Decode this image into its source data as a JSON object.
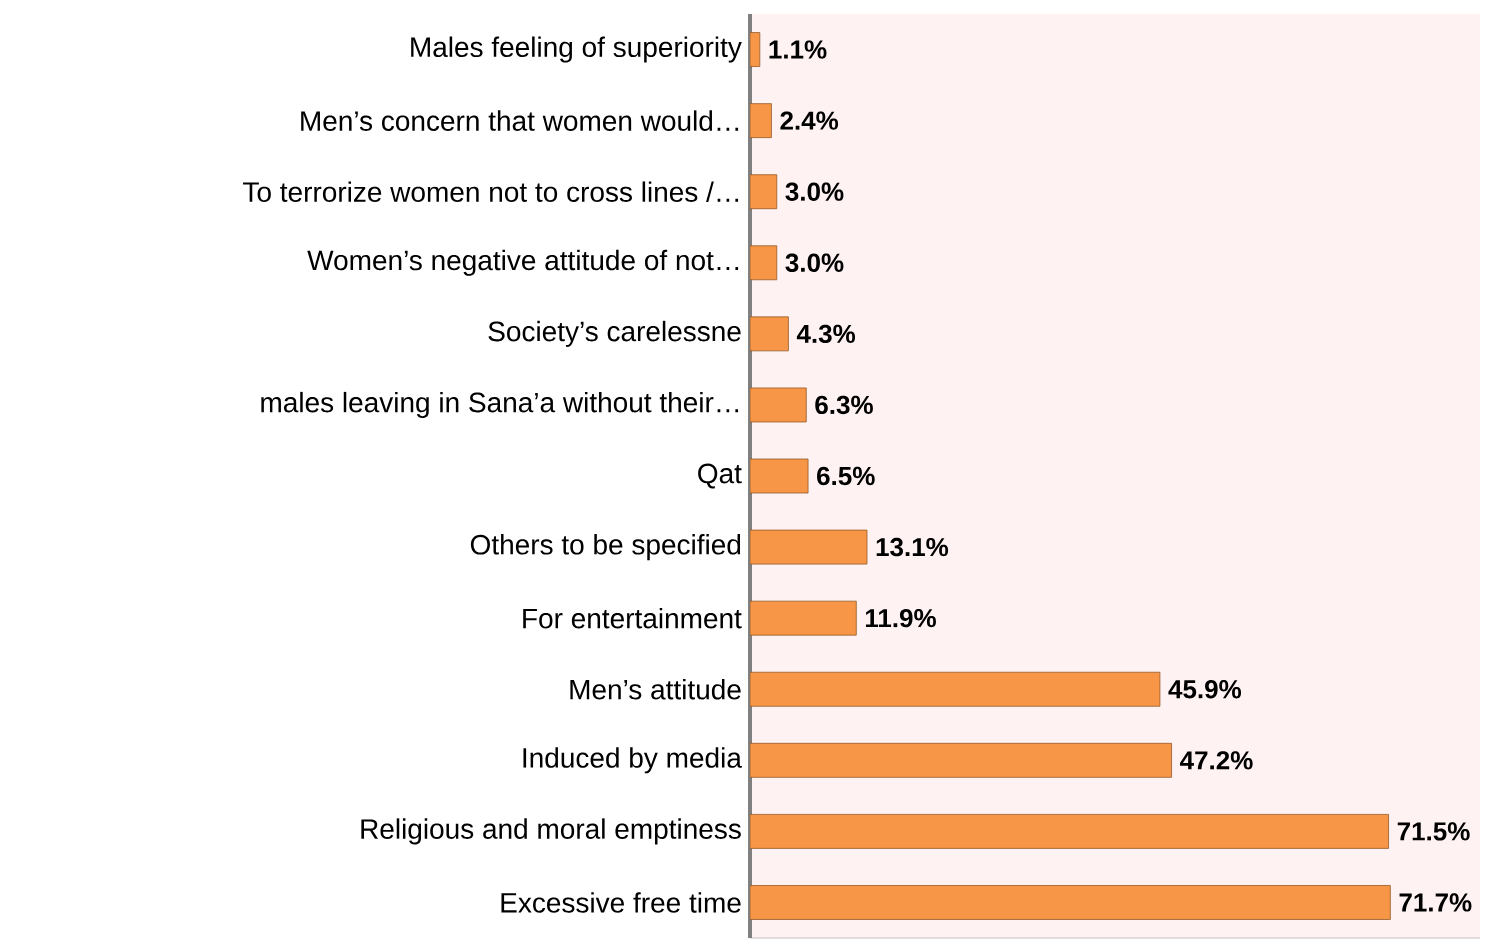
{
  "chart_data": {
    "type": "bar",
    "orientation": "horizontal",
    "color": "#f79646",
    "categories": [
      "Males feeling of superiority",
      "Men’s concern that women would…",
      "To terrorize women not to cross lines /…",
      "Women’s negative attitude of not…",
      "Society’s carelessne",
      "males leaving in  Sana’a without their…",
      "Qat",
      "Others to be specified",
      "For entertainment",
      "Men’s attitude",
      "Induced by media",
      "Religious and moral emptiness",
      "Excessive free time"
    ],
    "values": [
      1.1,
      2.4,
      3.0,
      3.0,
      4.3,
      6.3,
      6.5,
      13.1,
      11.9,
      45.9,
      47.2,
      71.5,
      71.7
    ],
    "value_labels": [
      "1.1%",
      "2.4%",
      "3.0%",
      "3.0%",
      "4.3%",
      "6.3%",
      "6.5%",
      "13.1%",
      "11.9%",
      "45.9%",
      "47.2%",
      "71.5%",
      "71.7%"
    ],
    "legend": false
  }
}
